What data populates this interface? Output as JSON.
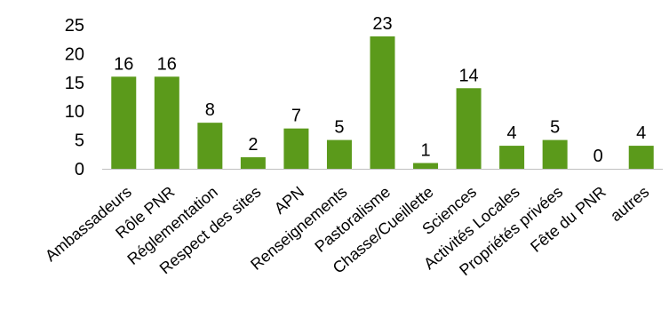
{
  "chart_data": {
    "type": "bar",
    "categories": [
      "Ambassadeurs",
      "Rôle PNR",
      "Réglementation",
      "Respect des sites",
      "APN",
      "Renseignements",
      "Pastoralisme",
      "Chasse/Cueillette",
      "Sciences",
      "Activités Locales",
      "Propriétés privées",
      "Fête du PNR",
      "autres"
    ],
    "values": [
      16,
      16,
      8,
      2,
      7,
      5,
      23,
      1,
      14,
      4,
      5,
      0,
      4
    ],
    "ylim": [
      0,
      25
    ],
    "yticks": [
      "0",
      "5",
      "10",
      "15",
      "20",
      "25"
    ],
    "grid": false,
    "legend": "none",
    "bar_color": "#5b9a1b"
  }
}
